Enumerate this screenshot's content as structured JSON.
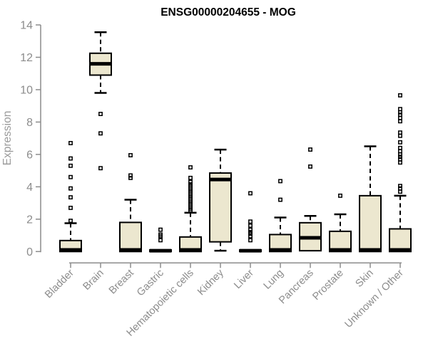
{
  "chart_data": {
    "type": "box",
    "title": "ENSG00000204655 - MOG",
    "xlabel": "",
    "ylabel": "Expression",
    "ylim": [
      0,
      14
    ],
    "yticks": [
      0,
      2,
      4,
      6,
      8,
      10,
      12,
      14
    ],
    "grid": false,
    "legend": "none",
    "categories": [
      "Bladder",
      "Brain",
      "Breast",
      "Gastric",
      "Hematopoietic cells",
      "Kidney",
      "Liver",
      "Lung",
      "Pancreas",
      "Prostate",
      "Skin",
      "Unknown / Other"
    ],
    "boxes": [
      {
        "label": "Bladder",
        "low": 0,
        "q1": 0,
        "median": 0.1,
        "q3": 0.68,
        "high": 1.75,
        "outliers": [
          1.9,
          2.7,
          3.35,
          3.9,
          4.6,
          5.3,
          5.75,
          6.7
        ]
      },
      {
        "label": "Brain",
        "low": 9.8,
        "q1": 10.9,
        "median": 11.6,
        "q3": 12.25,
        "high": 13.55,
        "outliers": [
          5.15,
          7.3,
          8.5
        ]
      },
      {
        "label": "Breast",
        "low": 0,
        "q1": 0,
        "median": 0.1,
        "q3": 1.8,
        "high": 3.2,
        "outliers": [
          4.55,
          4.7,
          5.95
        ]
      },
      {
        "label": "Gastric",
        "low": 0,
        "q1": 0,
        "median": 0.05,
        "q3": 0.1,
        "high": 0.1,
        "outliers": [
          0.7,
          0.95,
          1.05,
          1.35
        ]
      },
      {
        "label": "Hematopoietic cells",
        "low": 0,
        "q1": 0,
        "median": 0.1,
        "q3": 0.9,
        "high": 2.4,
        "outliers": [
          2.55,
          2.65,
          2.75,
          2.85,
          2.95,
          3.05,
          3.15,
          3.25,
          3.35,
          3.45,
          3.55,
          3.65,
          3.75,
          3.85,
          3.95,
          4.05,
          4.15,
          4.3,
          4.55,
          5.2
        ]
      },
      {
        "label": "Kidney",
        "low": 0.05,
        "q1": 0.6,
        "median": 4.45,
        "q3": 4.85,
        "high": 6.3,
        "outliers": []
      },
      {
        "label": "Liver",
        "low": 0,
        "q1": 0,
        "median": 0.05,
        "q3": 0.1,
        "high": 0.1,
        "outliers": [
          0.7,
          0.95,
          1.1,
          1.2,
          1.35,
          1.6,
          1.85,
          3.6
        ]
      },
      {
        "label": "Lung",
        "low": 0,
        "q1": 0,
        "median": 0.1,
        "q3": 1.05,
        "high": 2.1,
        "outliers": [
          3.2,
          4.35
        ]
      },
      {
        "label": "Pancreas",
        "low": 0.05,
        "q1": 0.05,
        "median": 0.85,
        "q3": 1.78,
        "high": 2.2,
        "outliers": [
          5.25,
          6.3
        ]
      },
      {
        "label": "Prostate",
        "low": 0,
        "q1": 0,
        "median": 0.1,
        "q3": 1.25,
        "high": 2.3,
        "outliers": [
          3.45
        ]
      },
      {
        "label": "Skin",
        "low": 0,
        "q1": 0,
        "median": 0.1,
        "q3": 3.45,
        "high": 6.5,
        "outliers": []
      },
      {
        "label": "Unknown / Other",
        "low": 0,
        "q1": 0,
        "median": 0.1,
        "q3": 1.4,
        "high": 3.45,
        "outliers": [
          3.7,
          3.9,
          4.05,
          5.5,
          5.7,
          5.85,
          6.0,
          6.2,
          6.4,
          6.75,
          7.15,
          7.35,
          8.05,
          8.25,
          8.45,
          8.6,
          8.8,
          9.65
        ]
      }
    ]
  },
  "colors": {
    "background": "#ffffff",
    "box_fill": "#ece7cf",
    "box_stroke": "#000000",
    "whisker": "#000000",
    "outlier": "#000000",
    "axis": "#8c8c8c",
    "tick_label": "#8c8c8c",
    "title_color": "#000000",
    "axis_label_color": "#9a9a9a"
  }
}
